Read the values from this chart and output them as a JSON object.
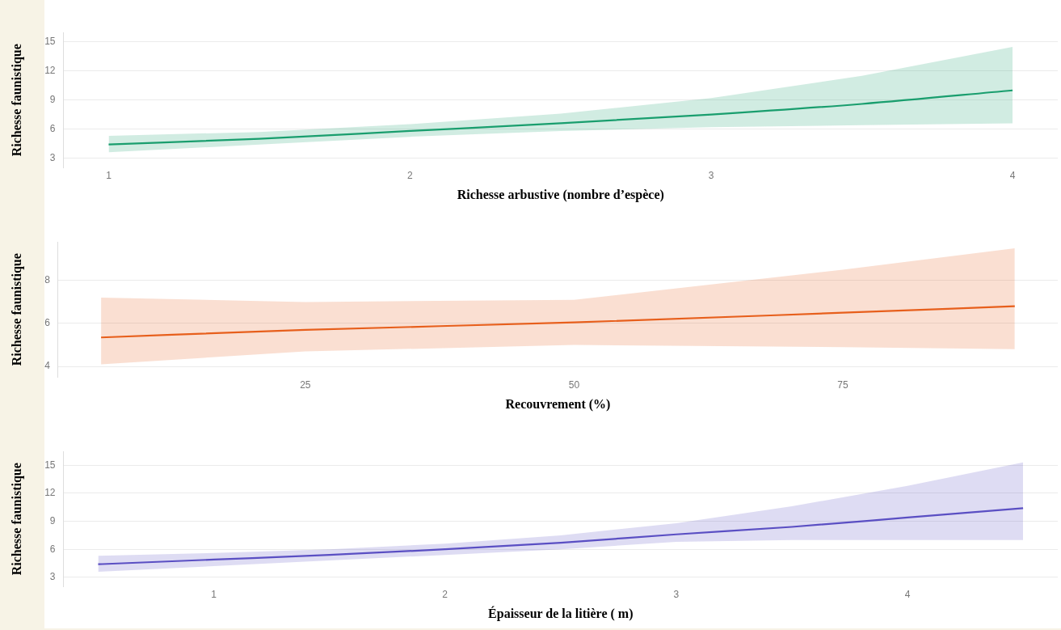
{
  "chart_data": [
    {
      "type": "line",
      "xlabel": "Richesse arbustive (nombre d’espèce)",
      "ylabel": "Richesse faunistique",
      "xlim": [
        0.85,
        4.15
      ],
      "ylim": [
        2,
        16
      ],
      "xticks": [
        1,
        2,
        3,
        4
      ],
      "yticks": [
        3,
        6,
        9,
        12,
        15
      ],
      "grid": "y",
      "marker": "none",
      "line_style": "solid",
      "series": [
        {
          "color": "#1a9e6e",
          "x": [
            1,
            1.5,
            2,
            2.5,
            3,
            3.5,
            4
          ],
          "values": [
            4.4,
            5.0,
            5.8,
            6.6,
            7.5,
            8.6,
            10.0
          ],
          "lower": [
            3.6,
            4.4,
            5.2,
            5.8,
            6.2,
            6.4,
            6.6
          ],
          "upper": [
            5.3,
            5.7,
            6.5,
            7.6,
            9.2,
            11.5,
            14.5
          ]
        }
      ]
    },
    {
      "type": "line",
      "xlabel": "Recouvrement (%)",
      "ylabel": "Richesse faunistique",
      "xlim": [
        2,
        95
      ],
      "ylim": [
        3.5,
        9.8
      ],
      "xticks": [
        25,
        50,
        75
      ],
      "yticks": [
        4,
        6,
        8
      ],
      "grid": "y",
      "marker": "none",
      "line_style": "solid",
      "series": [
        {
          "color": "#e8601c",
          "x": [
            6,
            25,
            50,
            75,
            91
          ],
          "values": [
            5.35,
            5.7,
            6.05,
            6.5,
            6.8
          ],
          "lower": [
            4.1,
            4.7,
            5.0,
            4.9,
            4.8
          ],
          "upper": [
            7.2,
            7.0,
            7.1,
            8.5,
            9.5
          ]
        }
      ]
    },
    {
      "type": "line",
      "xlabel": "Épaisseur de la litière ( m)",
      "ylabel": "Richesse faunistique",
      "xlim": [
        0.35,
        4.65
      ],
      "ylim": [
        2,
        16.5
      ],
      "xticks": [
        1,
        2,
        3,
        4
      ],
      "yticks": [
        3,
        6,
        9,
        12,
        15
      ],
      "grid": "y",
      "marker": "none",
      "line_style": "solid",
      "series": [
        {
          "color": "#5b4fc4",
          "x": [
            0.5,
            1,
            1.5,
            2,
            2.5,
            3,
            3.5,
            4,
            4.5
          ],
          "values": [
            4.4,
            4.9,
            5.4,
            6.0,
            6.7,
            7.6,
            8.4,
            9.4,
            10.4
          ],
          "lower": [
            3.6,
            4.2,
            4.8,
            5.4,
            6.0,
            6.8,
            7.0,
            7.0,
            7.0
          ],
          "upper": [
            5.3,
            5.6,
            6.0,
            6.6,
            7.5,
            8.8,
            10.6,
            12.8,
            15.3
          ]
        }
      ]
    }
  ]
}
